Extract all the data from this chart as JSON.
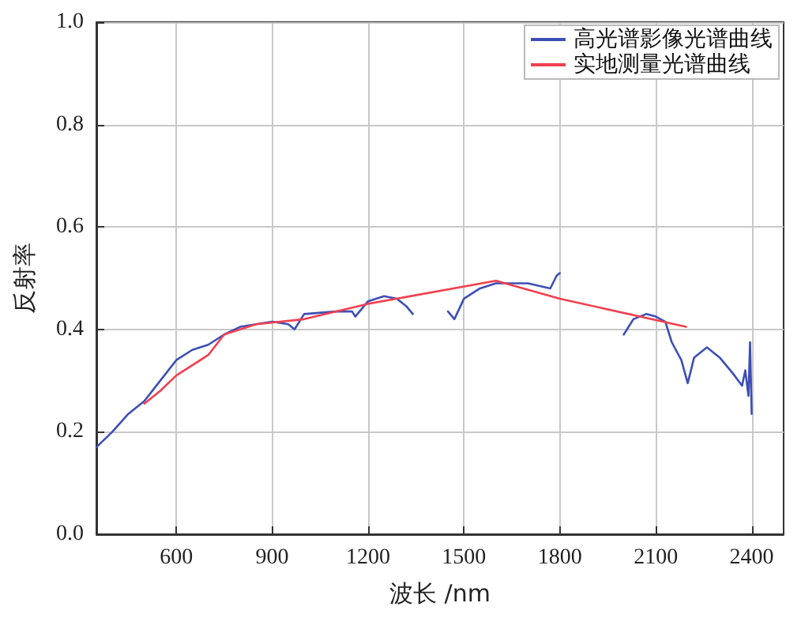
{
  "chart_data": {
    "type": "line",
    "xlabel": "波长 /nm",
    "ylabel": "反射率",
    "xlim": [
      350,
      2500
    ],
    "xticks": [
      600,
      900,
      1200,
      1500,
      1800,
      2100,
      2400
    ],
    "ylim": [
      0,
      1
    ],
    "yticks": [
      {
        "value": 0,
        "label": "0.0"
      },
      {
        "value": 0.2,
        "label": "0.2"
      },
      {
        "value": 0.4,
        "label": "0.4"
      },
      {
        "value": 0.6,
        "label": "0.6"
      },
      {
        "value": 0.8,
        "label": "0.8"
      },
      {
        "value": 1,
        "label": "1.0"
      }
    ],
    "grid": true,
    "legend": "top right",
    "marker": "none",
    "line_style": "solid",
    "series": [
      {
        "name": "高光谱影像光谱曲线",
        "color": "#3d4fb5",
        "x": [
          350,
          400,
          450,
          500,
          550,
          600,
          650,
          700,
          750,
          800,
          850,
          900,
          950,
          970,
          1000,
          1100,
          1150,
          1160,
          1200,
          1250,
          1290,
          1320,
          1340,
          1400,
          1450,
          1470,
          1500,
          1550,
          1600,
          1650,
          1700,
          1770,
          1790,
          1800,
          1900,
          2000,
          2030,
          2070,
          2100,
          2130,
          2150,
          2180,
          2200,
          2220,
          2260,
          2300,
          2340,
          2370,
          2380,
          2390,
          2395,
          2400
        ],
        "values": [
          0.17,
          0.2,
          0.235,
          0.26,
          0.3,
          0.34,
          0.36,
          0.37,
          0.39,
          0.405,
          0.41,
          0.415,
          0.41,
          0.4,
          0.43,
          0.435,
          0.435,
          0.425,
          0.455,
          0.465,
          0.46,
          0.445,
          0.43,
          null,
          0.435,
          0.42,
          0.46,
          0.48,
          0.49,
          0.49,
          0.49,
          0.48,
          0.505,
          0.51,
          null,
          0.39,
          0.42,
          0.43,
          0.425,
          0.415,
          0.375,
          0.34,
          0.295,
          0.345,
          0.365,
          0.345,
          0.315,
          0.29,
          0.32,
          0.27,
          0.375,
          0.235
        ]
      },
      {
        "name": "实地测量光谱曲线",
        "color": "#f0404f",
        "x": [
          500,
          550,
          600,
          700,
          750,
          800,
          850,
          1000,
          1200,
          1600,
          1800,
          2195
        ],
        "values": [
          0.255,
          0.28,
          0.31,
          0.35,
          0.39,
          0.4,
          0.41,
          0.42,
          0.45,
          0.495,
          0.46,
          0.405
        ]
      }
    ]
  }
}
